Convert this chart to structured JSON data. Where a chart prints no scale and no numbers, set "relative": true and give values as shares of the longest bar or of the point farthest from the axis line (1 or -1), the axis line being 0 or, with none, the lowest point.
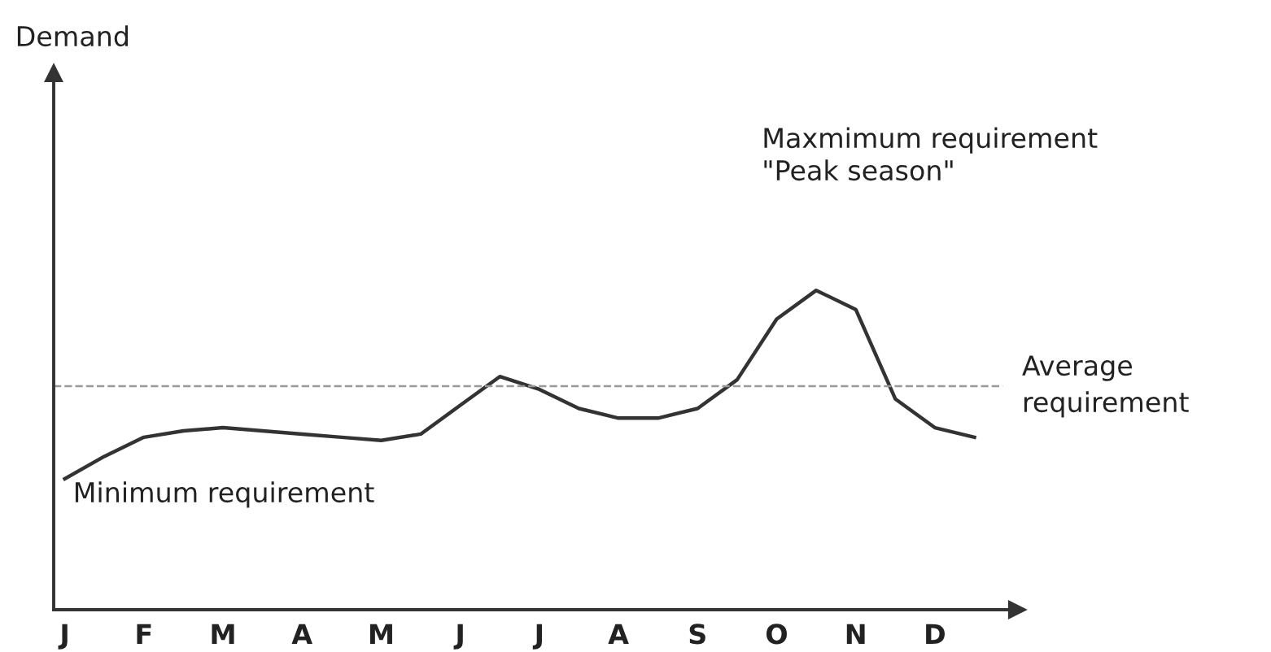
{
  "chart_data": {
    "type": "line",
    "relative": true,
    "categories": [
      "J",
      null,
      "F",
      null,
      "M",
      null,
      "A",
      null,
      "M",
      null,
      "J",
      null,
      "J",
      null,
      "A",
      null,
      "S",
      null,
      "O",
      null,
      "N",
      null,
      "D",
      null
    ],
    "series": [
      {
        "color": "#333333",
        "values": [
          0.41,
          0.48,
          0.54,
          0.56,
          0.57,
          0.56,
          0.55,
          0.54,
          0.53,
          0.55,
          0.64,
          0.73,
          0.69,
          0.63,
          0.6,
          0.6,
          0.63,
          0.72,
          0.91,
          1.0,
          0.94,
          0.66,
          0.57,
          0.54
        ]
      }
    ],
    "ref_lines": [
      {
        "axis": "y",
        "value": 0.7,
        "label": "Average\nrequirement",
        "color": "#999999",
        "line_style": "dashed"
      }
    ],
    "annotations": [
      "Maxmimum requirement\n\"Peak season\"",
      "Minimum requirement",
      "Demand"
    ],
    "marker": "none",
    "line_style": "solid",
    "grid": false,
    "legend": false
  }
}
